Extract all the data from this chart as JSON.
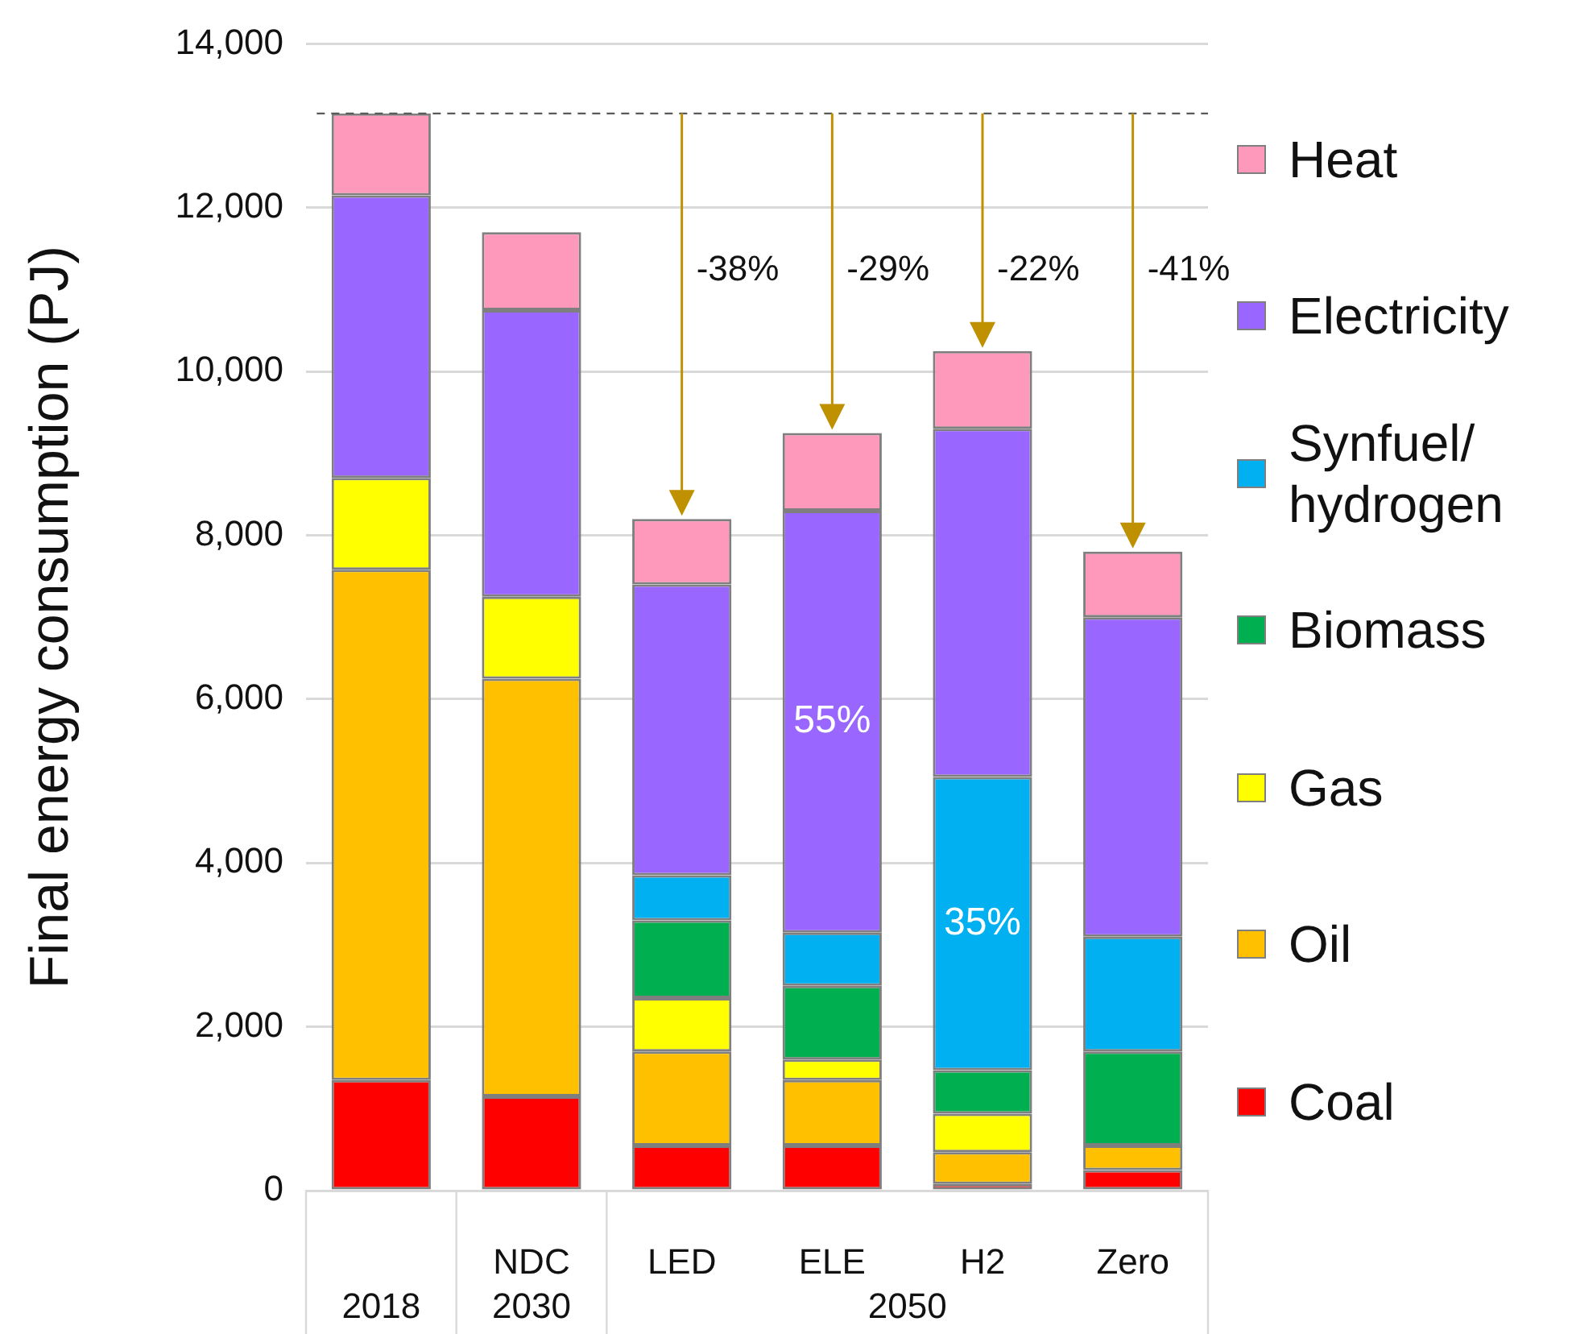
{
  "chart_data": {
    "type": "bar",
    "stacked": true,
    "ylabel": "Final energy consumption (PJ)",
    "categories": [
      null,
      "NDC",
      "LED",
      "ELE",
      "H2",
      "Zero"
    ],
    "series": [
      {
        "name": "Coal",
        "color": "#ff0000",
        "values": [
          1350,
          1150,
          550,
          550,
          80,
          250
        ]
      },
      {
        "name": "Oil",
        "color": "#ffc000",
        "values": [
          6230,
          5100,
          1150,
          800,
          390,
          300
        ]
      },
      {
        "name": "Gas",
        "color": "#ffff00",
        "values": [
          1120,
          1000,
          650,
          250,
          470,
          null
        ]
      },
      {
        "name": "Biomass",
        "color": "#00b050",
        "values": [
          null,
          null,
          950,
          900,
          530,
          1150
        ]
      },
      {
        "name": "Synfuel/hydrogen",
        "color": "#00b0f0",
        "values": [
          null,
          null,
          550,
          650,
          3580,
          1400
        ]
      },
      {
        "name": "Electricity",
        "color": "#9966ff",
        "values": [
          3450,
          3500,
          3550,
          5150,
          4250,
          3900
        ]
      },
      {
        "name": "Heat",
        "color": "#ff99bb",
        "values": [
          1000,
          950,
          800,
          950,
          950,
          800
        ]
      }
    ],
    "ylim": [
      0,
      14000
    ],
    "yticks": [
      0,
      {
        "value": 2000,
        "label": "2,000"
      },
      {
        "value": 4000,
        "label": "4,000"
      },
      {
        "value": 6000,
        "label": "6,000"
      },
      {
        "value": 8000,
        "label": "8,000"
      },
      {
        "value": 10000,
        "label": "10,000"
      },
      {
        "value": 12000,
        "label": "12,000"
      },
      {
        "value": 14000,
        "label": "14,000"
      }
    ],
    "grid": "y",
    "legend": "right",
    "ref_lines": [
      {
        "axis": "y",
        "value": 13150,
        "line_style": "dashed",
        "color": "#595959"
      }
    ],
    "annotations": [
      "-38%",
      "-29%",
      {
        "text": "-22%",
        "x": "H2",
        "y": 10250
      },
      "-41%",
      "55%",
      "35%",
      "2018",
      "2030",
      "2050"
    ]
  }
}
